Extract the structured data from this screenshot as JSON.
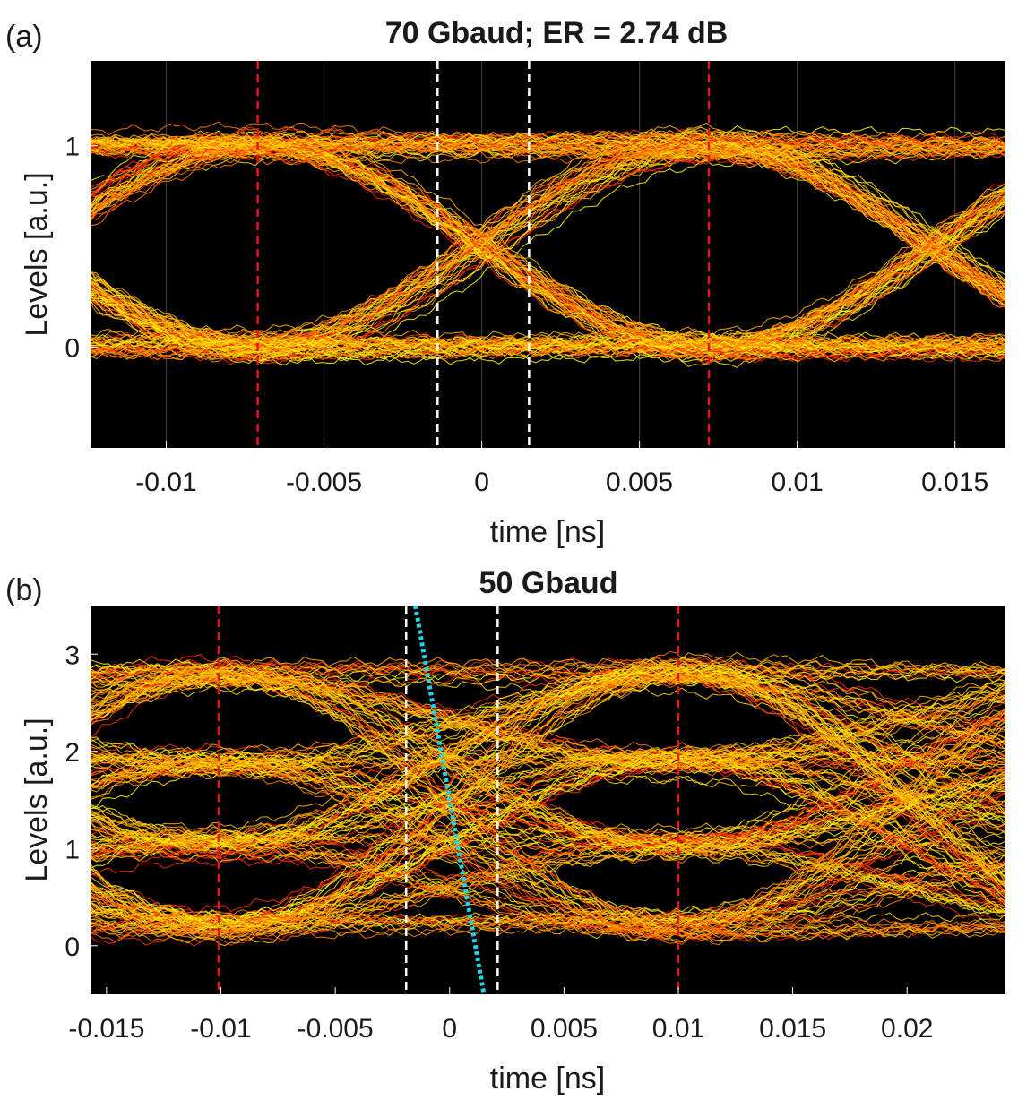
{
  "chart_data": [
    {
      "type": "eye-diagram",
      "panel_label": "(a)",
      "title": "70 Gbaud; ER = 2.74 dB",
      "xlabel": "time [ns]",
      "ylabel": "Levels [a.u.]",
      "xlim": [
        -0.0124,
        0.0166
      ],
      "ylim": [
        -0.5,
        1.42
      ],
      "xticks": [
        -0.01,
        -0.005,
        0,
        0.005,
        0.01,
        0.015
      ],
      "xtick_labels": [
        "-0.01",
        "-0.005",
        "0",
        "0.005",
        "0.01",
        "0.015"
      ],
      "yticks": [
        0,
        1
      ],
      "ytick_labels": [
        "0",
        "1"
      ],
      "grid_x": [
        -0.01,
        -0.005,
        0,
        0.005,
        0.01,
        0.015
      ],
      "levels": [
        0,
        1
      ],
      "symbol_period_ns": 0.0143,
      "eye_centers_ns": [
        0
      ],
      "red_dashed_lines": [
        -0.0071,
        0.0072
      ],
      "white_dashed_lines": [
        -0.0014,
        0.0015
      ],
      "trace_colors": [
        "#ff2a00",
        "#ff7a00",
        "#ffb000",
        "#ffd400",
        "#fff200"
      ]
    },
    {
      "type": "eye-diagram",
      "panel_label": "(b)",
      "title": "50 Gbaud",
      "xlabel": "time [ns]",
      "ylabel": "Levels [a.u.]",
      "xlim": [
        -0.0157,
        0.0243
      ],
      "ylim": [
        -0.5,
        3.5
      ],
      "xticks": [
        -0.015,
        -0.01,
        -0.005,
        0,
        0.005,
        0.01,
        0.015,
        0.02
      ],
      "xtick_labels": [
        "-0.015",
        "-0.01",
        "-0.005",
        "0",
        "0.005",
        "0.01",
        "0.015",
        "0.02"
      ],
      "yticks": [
        0,
        1,
        2,
        3
      ],
      "ytick_labels": [
        "0",
        "1",
        "2",
        "3"
      ],
      "levels": [
        0.2,
        1.05,
        1.9,
        2.8
      ],
      "symbol_period_ns": 0.02,
      "eye_centers_ns": [
        0,
        0.02
      ],
      "red_dashed_lines": [
        -0.0101,
        0.01
      ],
      "white_dashed_lines": [
        -0.0019,
        0.0021
      ],
      "cyan_dotted_line": {
        "x": [
          -0.0015,
          0.0015
        ],
        "y": [
          3.5,
          -0.5
        ]
      },
      "trace_colors": [
        "#ff2a00",
        "#ff7a00",
        "#ffb000",
        "#ffd400",
        "#fff200"
      ]
    }
  ]
}
